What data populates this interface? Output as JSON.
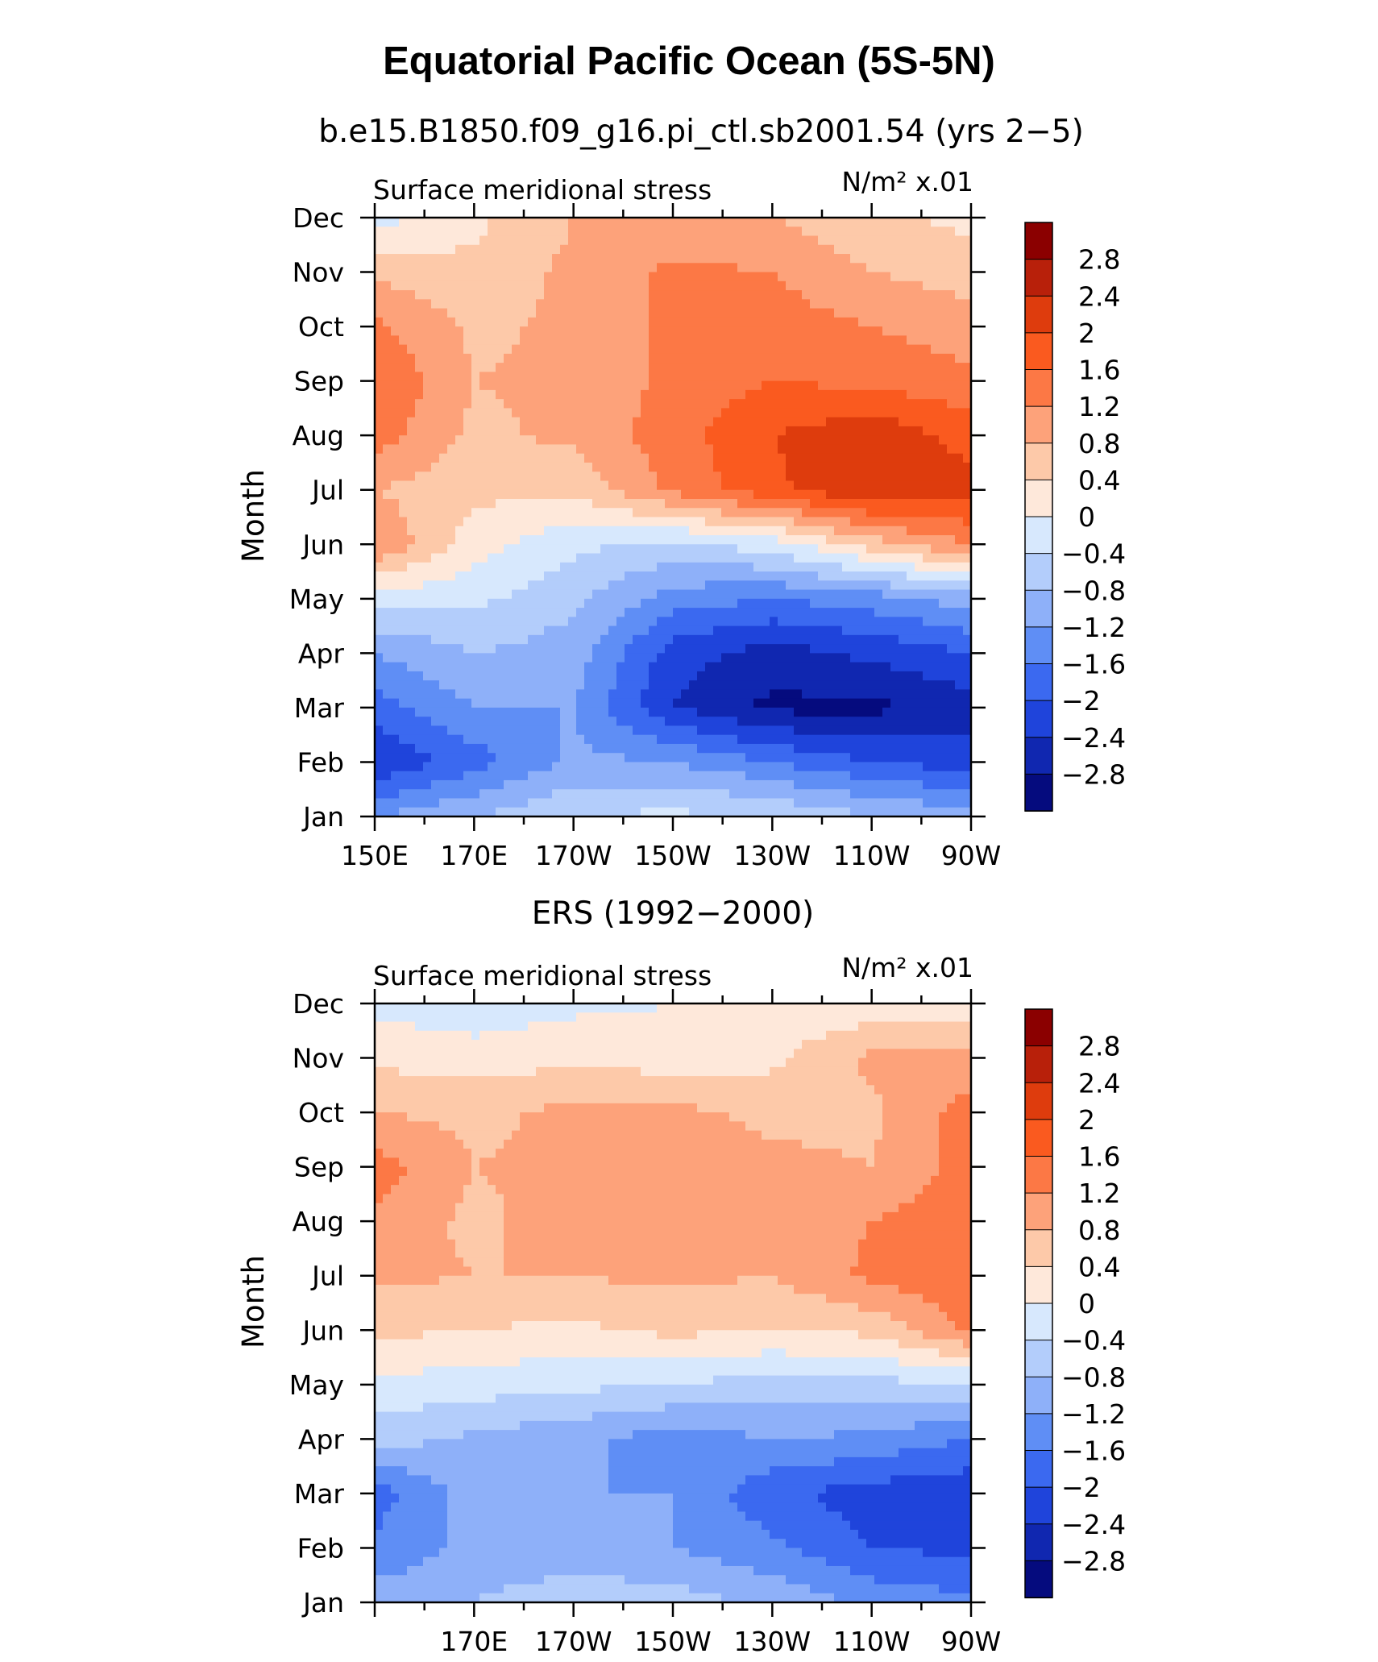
{
  "figure": {
    "title": "Equatorial Pacific Ocean (5S-5N)"
  },
  "colorbar": {
    "levels": [
      "2.8",
      "2.4",
      "2",
      "1.6",
      "1.2",
      "0.8",
      "0.4",
      "0",
      "−0.4",
      "−0.8",
      "−1.2",
      "−1.6",
      "−2",
      "−2.4",
      "−2.8"
    ],
    "colors": [
      "#8b0000",
      "#b8200a",
      "#de3c0d",
      "#fa5a1f",
      "#fc7845",
      "#fda27a",
      "#fdc9a9",
      "#fee8da",
      "#d7e8fd",
      "#b3cdfb",
      "#8eb0f9",
      "#5f8ef5",
      "#3b69f0",
      "#1f44db",
      "#1027b0",
      "#050b7e"
    ]
  },
  "chart_data": [
    {
      "type": "heatmap",
      "id": "model",
      "subtitle": "b.e15.B1850.f09_g16.pi_ctl.sb2001.54 (yrs 2−5)",
      "left_string": "Surface meridional stress",
      "right_string": "N/m² x.01",
      "ylabel": "Month",
      "x_ticks": [
        "150E",
        "170E",
        "170W",
        "150W",
        "130W",
        "110W",
        "90W"
      ],
      "x_range_deg_east": [
        150,
        270
      ],
      "y_ticks": [
        "Jan",
        "Feb",
        "Mar",
        "Apr",
        "May",
        "Jun",
        "Jul",
        "Aug",
        "Sep",
        "Oct",
        "Nov",
        "Dec"
      ],
      "grid_lon_deg_east": [
        150,
        170,
        190,
        210,
        230,
        250,
        270
      ],
      "values_by_month": [
        [
          -1.2,
          -0.8,
          -0.4,
          -0.3,
          -0.4,
          -0.8,
          -1.0
        ],
        [
          -2.4,
          -1.8,
          -1.1,
          -1.2,
          -1.6,
          -2.0,
          -2.2
        ],
        [
          -1.8,
          -1.2,
          -1.2,
          -2.4,
          -2.9,
          -2.9,
          -2.6
        ],
        [
          -1.2,
          -0.8,
          -1.0,
          -2.2,
          -2.6,
          -2.3,
          -2.0
        ],
        [
          -0.2,
          -0.3,
          -0.7,
          -1.4,
          -1.6,
          -1.4,
          -1.0
        ],
        [
          1.2,
          0.2,
          -0.3,
          -0.5,
          -0.2,
          0.6,
          1.2
        ],
        [
          0.8,
          0.5,
          0.5,
          1.3,
          1.9,
          2.4,
          2.2
        ],
        [
          1.4,
          0.7,
          0.9,
          1.4,
          2.0,
          2.3,
          1.8
        ],
        [
          1.6,
          0.8,
          0.9,
          1.3,
          1.6,
          1.5,
          1.3
        ],
        [
          1.3,
          0.7,
          0.9,
          1.3,
          1.4,
          1.2,
          1.0
        ],
        [
          0.7,
          0.5,
          0.9,
          1.3,
          1.2,
          0.8,
          0.6
        ],
        [
          -0.2,
          0.3,
          0.8,
          0.9,
          0.8,
          0.5,
          0.3
        ]
      ]
    },
    {
      "type": "heatmap",
      "id": "ers",
      "subtitle": "ERS (1992−2000)",
      "left_string": "Surface meridional stress",
      "right_string": "N/m² x.01",
      "ylabel": "Month",
      "x_ticks": [
        "170E",
        "170W",
        "150W",
        "130W",
        "110W",
        "90W"
      ],
      "x_range_deg_east": [
        150,
        270
      ],
      "y_ticks": [
        "Jan",
        "Feb",
        "Mar",
        "Apr",
        "May",
        "Jun",
        "Jul",
        "Aug",
        "Sep",
        "Oct",
        "Nov",
        "Dec"
      ],
      "grid_lon_deg_east": [
        150,
        170,
        190,
        210,
        230,
        250,
        270
      ],
      "values_by_month": [
        [
          -1.0,
          -0.8,
          -0.5,
          -0.6,
          -0.9,
          -1.3,
          -1.5
        ],
        [
          -1.5,
          -1.1,
          -1.1,
          -1.2,
          -1.5,
          -2.0,
          -2.1
        ],
        [
          -1.8,
          -1.0,
          -1.2,
          -1.2,
          -1.9,
          -2.2,
          -2.3
        ],
        [
          -0.6,
          -0.9,
          -1.1,
          -1.4,
          -1.2,
          -1.3,
          -1.6
        ],
        [
          -0.1,
          -0.2,
          -0.3,
          -0.4,
          -0.6,
          -0.5,
          -0.5
        ],
        [
          0.5,
          0.4,
          0.3,
          0.5,
          0.4,
          0.5,
          1.3
        ],
        [
          0.9,
          0.8,
          0.8,
          0.9,
          0.8,
          1.3,
          1.5
        ],
        [
          1.1,
          0.7,
          1.0,
          1.0,
          0.9,
          1.2,
          1.5
        ],
        [
          1.4,
          0.8,
          0.9,
          1.0,
          0.9,
          0.8,
          1.4
        ],
        [
          0.8,
          0.7,
          0.9,
          0.9,
          0.7,
          0.7,
          1.4
        ],
        [
          0.3,
          0.2,
          0.3,
          0.2,
          0.3,
          0.9,
          0.9
        ],
        [
          -0.1,
          -0.3,
          -0.1,
          0.0,
          0.1,
          0.1,
          0.1
        ]
      ]
    }
  ]
}
